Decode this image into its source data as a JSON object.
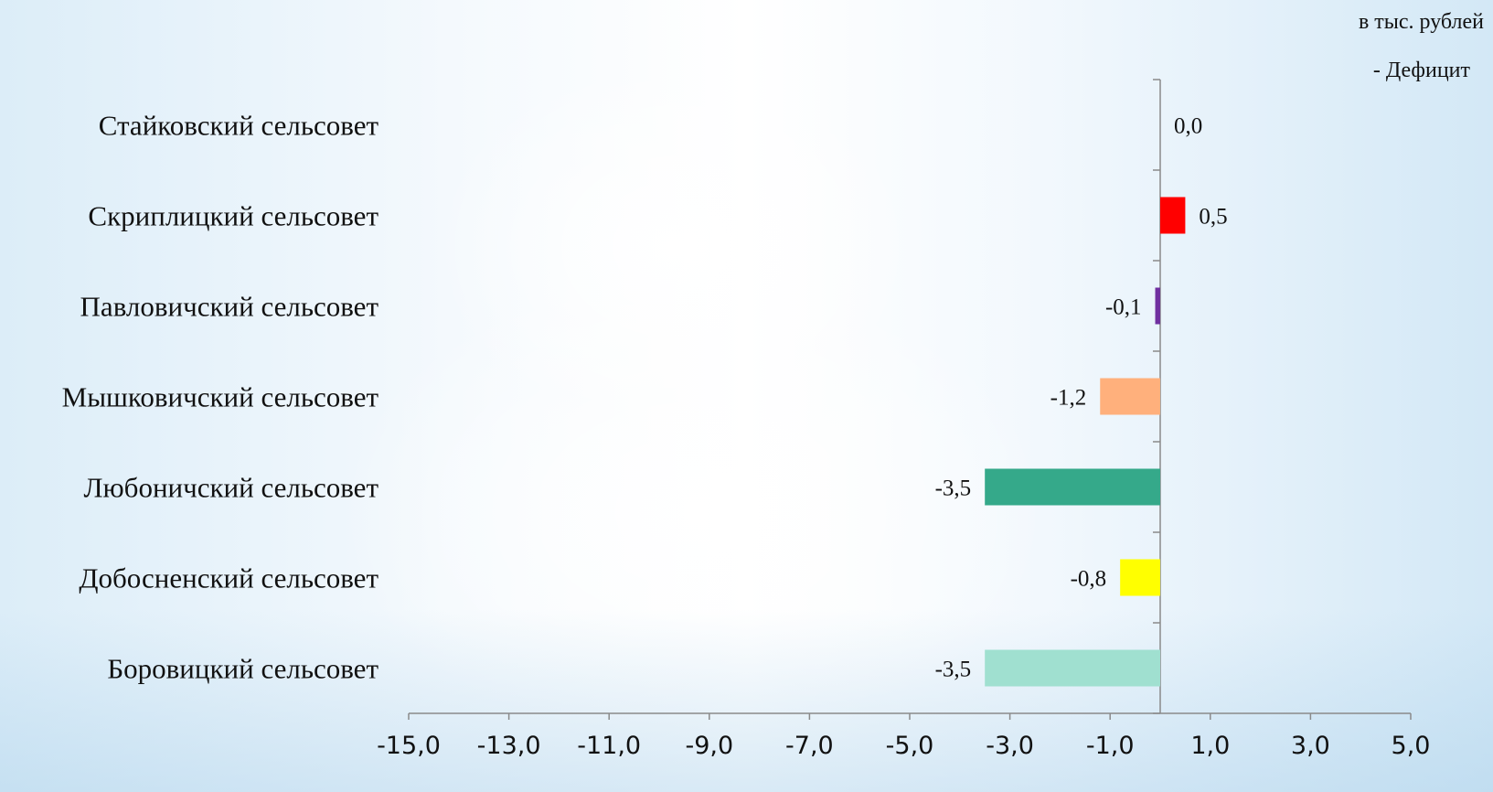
{
  "unit_label": "в тыс. рублей",
  "legend_label": "- Дефицит",
  "chart_data": {
    "type": "bar",
    "orientation": "horizontal",
    "title": "",
    "xlabel": "",
    "ylabel": "",
    "categories": [
      "Стайковский сельсовет",
      "Скриплицкий сельсовет",
      "Павловичский сельсовет",
      "Мышковичский сельсовет",
      "Любоничский сельсовет",
      "Добосненский сельсовет",
      "Боровицкий сельсовет"
    ],
    "values": [
      0.0,
      0.5,
      -0.1,
      -1.2,
      -3.5,
      -0.8,
      -3.5
    ],
    "value_labels": [
      "0,0",
      "0,5",
      "-0,1",
      "-1,2",
      "-3,5",
      "-0,8",
      "-3,5"
    ],
    "colors": [
      "#7f7f7f",
      "#ff0000",
      "#7030a0",
      "#ffb07c",
      "#35a98a",
      "#ffff00",
      "#a0e0d0"
    ],
    "xlim": [
      -15,
      5
    ],
    "x_ticks": [
      -15,
      -13,
      -11,
      -9,
      -7,
      -5,
      -3,
      -1,
      1,
      3,
      5
    ],
    "x_tick_labels": [
      "-15,0",
      "-13,0",
      "-11,0",
      "-9,0",
      "-7,0",
      "-5,0",
      "-3,0",
      "-1,0",
      "1,0",
      "3,0",
      "5,0"
    ],
    "grid": false,
    "legend": "top-right"
  }
}
